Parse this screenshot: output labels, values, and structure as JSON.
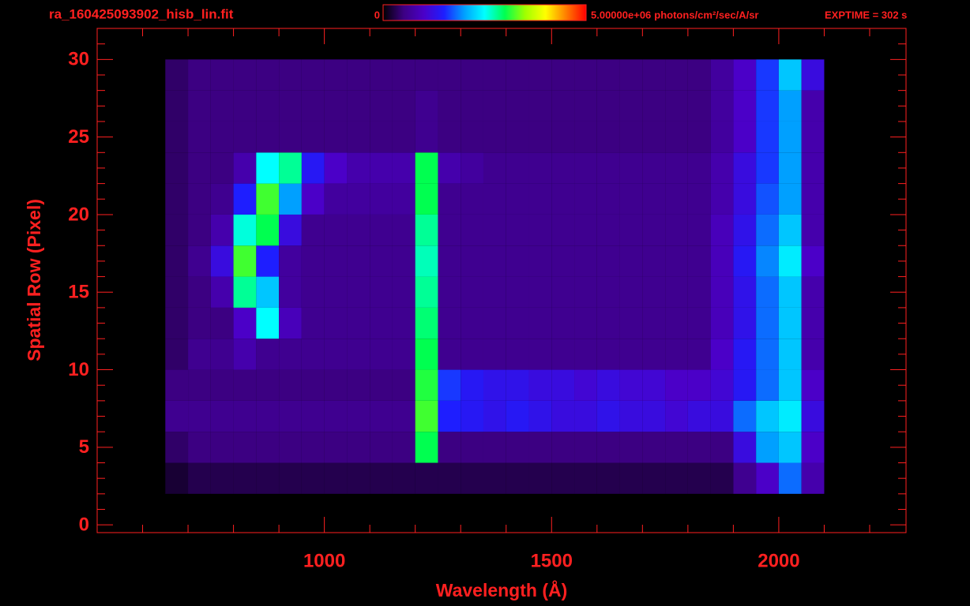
{
  "chart_data": {
    "type": "heatmap",
    "title": "ra_160425093902_hisb_lin.fit",
    "annotation": "EXPTIME = 302 s",
    "xlabel": "Wavelength (Å)",
    "ylabel": "Spatial Row (Pixel)",
    "color": "#ff2020",
    "xlim": [
      500,
      2280
    ],
    "ylim": [
      -0.5,
      32
    ],
    "xticks": [
      1000,
      1500,
      2000
    ],
    "yticks": [
      0,
      5,
      10,
      15,
      20,
      25,
      30
    ],
    "xminorticks": [
      600,
      700,
      800,
      900,
      1100,
      1200,
      1300,
      1400,
      1600,
      1700,
      1800,
      1900,
      2100,
      2200
    ],
    "yminorticks": [
      1,
      2,
      3,
      4,
      6,
      7,
      8,
      9,
      11,
      12,
      13,
      14,
      16,
      17,
      18,
      19,
      21,
      22,
      23,
      24,
      26,
      27,
      28,
      29,
      31,
      32
    ],
    "zlim": [
      0,
      5000000
    ],
    "zticks": [
      0,
      {
        "value": 5000000,
        "label": "5.00000e+06"
      }
    ],
    "zlabel": "photons/cm²/sec/A/sr",
    "colormap": [
      "#000000",
      "#3c0082",
      "#4b00c8",
      "#1e1eff",
      "#00a0ff",
      "#00ffff",
      "#00ff50",
      "#a0ff00",
      "#ffff00",
      "#ff8000",
      "#ff0000"
    ],
    "x_edges": [
      650,
      700,
      750,
      800,
      850,
      900,
      950,
      1000,
      1050,
      1100,
      1150,
      1200,
      1250,
      1300,
      1350,
      1400,
      1450,
      1500,
      1550,
      1600,
      1650,
      1700,
      1750,
      1800,
      1850,
      1900,
      1950,
      2000,
      2050,
      2100
    ],
    "y_edges": [
      2,
      4,
      6,
      8,
      10,
      12,
      14,
      16,
      18,
      20,
      22,
      24,
      26,
      28,
      30
    ],
    "values": [
      [
        200000,
        300000,
        300000,
        300000,
        300000,
        300000,
        300000,
        300000,
        300000,
        300000,
        300000,
        300000,
        300000,
        300000,
        300000,
        300000,
        300000,
        300000,
        300000,
        300000,
        300000,
        300000,
        300000,
        300000,
        300000,
        600000,
        1000000,
        1800000,
        800000
      ],
      [
        400000,
        500000,
        500000,
        500000,
        500000,
        500000,
        500000,
        500000,
        500000,
        500000,
        500000,
        3000000,
        500000,
        500000,
        500000,
        500000,
        500000,
        500000,
        500000,
        500000,
        500000,
        500000,
        500000,
        500000,
        500000,
        1200000,
        2000000,
        2200000,
        1000000
      ],
      [
        600000,
        600000,
        600000,
        600000,
        600000,
        600000,
        600000,
        600000,
        600000,
        600000,
        600000,
        3200000,
        1500000,
        1400000,
        1300000,
        1400000,
        1300000,
        1200000,
        1200000,
        1300000,
        1200000,
        1200000,
        1100000,
        1200000,
        1200000,
        1800000,
        2200000,
        2400000,
        1200000
      ],
      [
        500000,
        500000,
        500000,
        500000,
        500000,
        500000,
        500000,
        500000,
        500000,
        500000,
        500000,
        3100000,
        1600000,
        1400000,
        1300000,
        1300000,
        1200000,
        1200000,
        1100000,
        1200000,
        1100000,
        1100000,
        1000000,
        1000000,
        1100000,
        1400000,
        1800000,
        2200000,
        1000000
      ],
      [
        400000,
        600000,
        600000,
        800000,
        600000,
        600000,
        600000,
        600000,
        600000,
        600000,
        600000,
        3000000,
        600000,
        600000,
        600000,
        600000,
        600000,
        600000,
        600000,
        600000,
        600000,
        600000,
        600000,
        600000,
        1000000,
        1400000,
        1800000,
        2200000,
        800000
      ],
      [
        400000,
        500000,
        500000,
        1000000,
        2500000,
        900000,
        600000,
        600000,
        600000,
        600000,
        600000,
        2900000,
        600000,
        600000,
        600000,
        600000,
        600000,
        600000,
        600000,
        600000,
        600000,
        600000,
        600000,
        600000,
        900000,
        1300000,
        1800000,
        2200000,
        800000
      ],
      [
        400000,
        500000,
        800000,
        2800000,
        2200000,
        700000,
        600000,
        600000,
        600000,
        600000,
        600000,
        2800000,
        600000,
        600000,
        600000,
        600000,
        600000,
        600000,
        600000,
        600000,
        600000,
        600000,
        600000,
        600000,
        900000,
        1300000,
        1800000,
        2200000,
        800000
      ],
      [
        400000,
        600000,
        1200000,
        3200000,
        1500000,
        700000,
        600000,
        600000,
        600000,
        600000,
        600000,
        2700000,
        600000,
        600000,
        600000,
        600000,
        600000,
        600000,
        600000,
        600000,
        600000,
        600000,
        600000,
        600000,
        900000,
        1400000,
        1900000,
        2400000,
        1000000
      ],
      [
        400000,
        500000,
        800000,
        2600000,
        3000000,
        1200000,
        600000,
        600000,
        600000,
        600000,
        600000,
        2800000,
        600000,
        600000,
        600000,
        600000,
        600000,
        600000,
        600000,
        600000,
        600000,
        600000,
        600000,
        600000,
        900000,
        1300000,
        1800000,
        2200000,
        800000
      ],
      [
        400000,
        500000,
        600000,
        1500000,
        3200000,
        2000000,
        1000000,
        700000,
        700000,
        700000,
        700000,
        3000000,
        600000,
        600000,
        600000,
        600000,
        600000,
        600000,
        600000,
        600000,
        600000,
        600000,
        600000,
        600000,
        800000,
        1200000,
        1700000,
        2000000,
        800000
      ],
      [
        400000,
        500000,
        500000,
        800000,
        2500000,
        2800000,
        1400000,
        1000000,
        800000,
        800000,
        800000,
        3000000,
        800000,
        700000,
        600000,
        600000,
        600000,
        600000,
        600000,
        600000,
        600000,
        600000,
        600000,
        600000,
        800000,
        1200000,
        1600000,
        2000000,
        800000
      ],
      [
        400000,
        500000,
        500000,
        500000,
        500000,
        500000,
        500000,
        500000,
        500000,
        500000,
        500000,
        600000,
        500000,
        500000,
        500000,
        500000,
        500000,
        500000,
        500000,
        500000,
        500000,
        500000,
        500000,
        500000,
        700000,
        1000000,
        1600000,
        2000000,
        800000
      ],
      [
        400000,
        500000,
        500000,
        500000,
        500000,
        500000,
        500000,
        500000,
        500000,
        500000,
        500000,
        600000,
        500000,
        500000,
        500000,
        500000,
        500000,
        500000,
        500000,
        500000,
        500000,
        500000,
        500000,
        500000,
        700000,
        1000000,
        1600000,
        2000000,
        800000
      ],
      [
        400000,
        500000,
        500000,
        500000,
        500000,
        500000,
        500000,
        500000,
        500000,
        500000,
        500000,
        500000,
        500000,
        500000,
        500000,
        500000,
        500000,
        500000,
        500000,
        500000,
        500000,
        500000,
        500000,
        500000,
        700000,
        1000000,
        1600000,
        2200000,
        1200000
      ]
    ]
  }
}
